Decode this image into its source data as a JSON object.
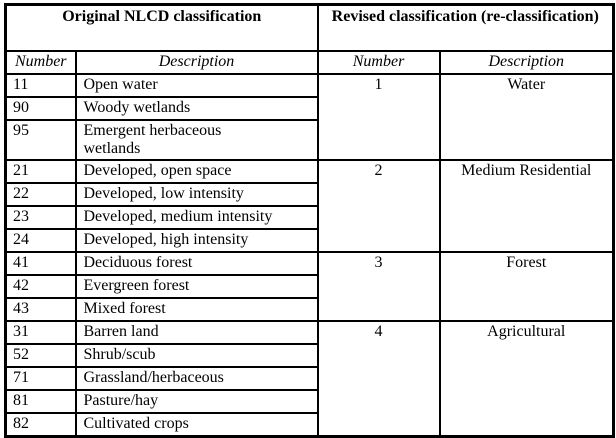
{
  "page": {
    "background": "#ffffff",
    "line_color": "#000000",
    "text_color": "#000000"
  },
  "table": {
    "header": {
      "original": "Original NLCD classification",
      "revised": "Revised classification (re-classification)"
    },
    "subheader": {
      "original_number": "Number",
      "original_description": "Description",
      "revised_number": "Number",
      "revised_description": "Description"
    },
    "groups": [
      {
        "revised_number": "1",
        "revised_description": "Water",
        "rows": [
          {
            "number": "11",
            "description": "Open water"
          },
          {
            "number": "90",
            "description": "Woody wetlands"
          },
          {
            "number": "95",
            "description": "Emergent herbaceous\nwetlands"
          }
        ]
      },
      {
        "revised_number": "2",
        "revised_description": "Medium Residential",
        "rows": [
          {
            "number": "21",
            "description": "Developed, open space"
          },
          {
            "number": "22",
            "description": "Developed, low intensity"
          },
          {
            "number": "23",
            "description": "Developed, medium intensity"
          },
          {
            "number": "24",
            "description": "Developed, high intensity"
          }
        ]
      },
      {
        "revised_number": "3",
        "revised_description": "Forest",
        "rows": [
          {
            "number": "41",
            "description": "Deciduous forest"
          },
          {
            "number": "42",
            "description": "Evergreen forest"
          },
          {
            "number": "43",
            "description": "Mixed forest"
          }
        ]
      },
      {
        "revised_number": "4",
        "revised_description": "Agricultural",
        "rows": [
          {
            "number": "31",
            "description": "Barren land"
          },
          {
            "number": "52",
            "description": "Shrub/scub"
          },
          {
            "number": "71",
            "description": "Grassland/herbaceous"
          },
          {
            "number": "81",
            "description": "Pasture/hay"
          },
          {
            "number": "82",
            "description": "Cultivated crops"
          }
        ]
      }
    ]
  }
}
